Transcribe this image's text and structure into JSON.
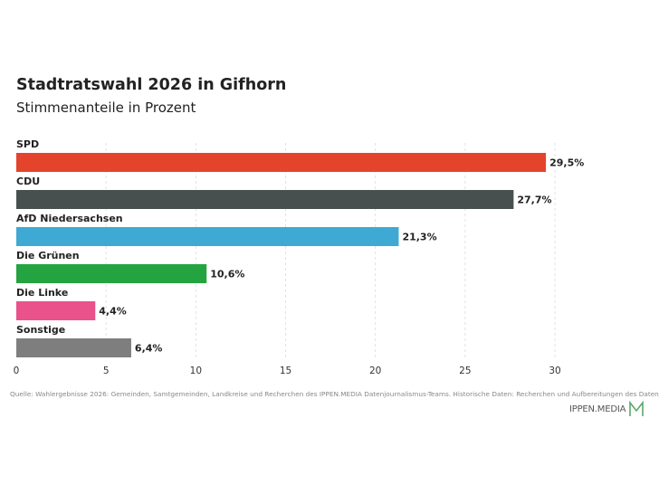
{
  "header": {
    "title": "Stadtratswahl 2026 in Gifhorn",
    "subtitle": "Stimmenanteile in Prozent"
  },
  "chart_data": {
    "type": "bar",
    "orientation": "horizontal",
    "title": "Stadtratswahl 2026 in Gifhorn",
    "subtitle": "Stimmenanteile in Prozent",
    "categories": [
      "SPD",
      "CDU",
      "AfD Niedersachsen",
      "Die Grünen",
      "Die Linke",
      "Sonstige"
    ],
    "values": [
      29.5,
      27.7,
      21.3,
      10.6,
      4.4,
      6.4
    ],
    "value_labels": [
      "29,5%",
      "27,7%",
      "21,3%",
      "10,6%",
      "4,4%",
      "6,4%"
    ],
    "colors": [
      "#e4442b",
      "#47504f",
      "#3eaad3",
      "#24a440",
      "#e9528a",
      "#7e7e7e"
    ],
    "xlim": [
      0,
      30
    ],
    "x_ticks": [
      0,
      5,
      10,
      15,
      20,
      25,
      30
    ],
    "xlabel": "",
    "ylabel": "",
    "grid": "vertical dashed"
  },
  "footer": {
    "source": "Quelle: Wahlergebnisse 2026: Gemeinden, Samtgemeinden, Landkreise und Recherchen des IPPEN.MEDIA Datenjournalismus-Teams. Historische Daten: Recherchen und Aufbereitungen des Datenjournalismus-Teams",
    "logo_text": "IPPEN.MEDIA",
    "logo_color": "#5aa86a"
  }
}
